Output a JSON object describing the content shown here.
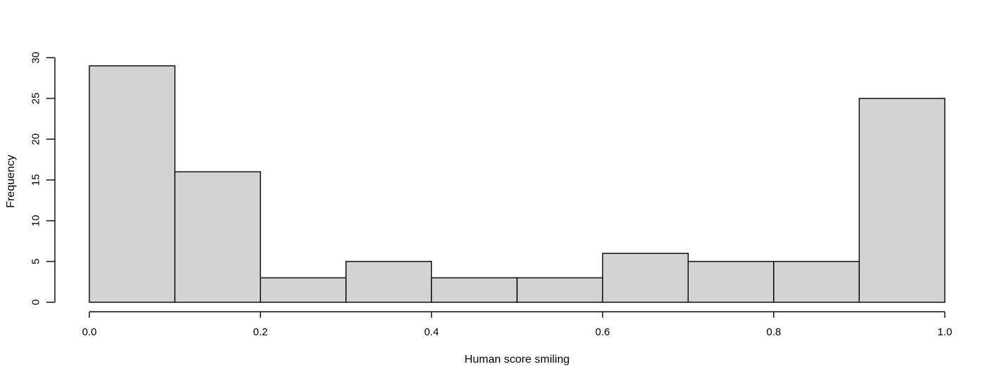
{
  "figure": {
    "background": "#ffffff",
    "text_color": "#000000"
  },
  "chart_data": {
    "type": "bar",
    "subtype": "histogram",
    "title": "",
    "xlabel": "Human score smiling",
    "ylabel": "Frequency",
    "bin_edges": [
      0.0,
      0.1,
      0.2,
      0.3,
      0.4,
      0.5,
      0.6,
      0.7,
      0.8,
      0.9,
      1.0
    ],
    "counts": [
      29,
      16,
      3,
      5,
      3,
      3,
      6,
      5,
      5,
      25
    ],
    "total_count": 100,
    "xlim": [
      0.0,
      1.0
    ],
    "ylim": [
      0,
      30
    ],
    "x_ticks": [
      {
        "value": 0.0,
        "label": "0.0"
      },
      {
        "value": 0.2,
        "label": "0.2"
      },
      {
        "value": 0.4,
        "label": "0.4"
      },
      {
        "value": 0.6,
        "label": "0.6"
      },
      {
        "value": 0.8,
        "label": "0.8"
      },
      {
        "value": 1.0,
        "label": "1.0"
      }
    ],
    "y_ticks": [
      {
        "value": 0,
        "label": "0"
      },
      {
        "value": 5,
        "label": "5"
      },
      {
        "value": 10,
        "label": "10"
      },
      {
        "value": 15,
        "label": "15"
      },
      {
        "value": 20,
        "label": "20"
      },
      {
        "value": 25,
        "label": "25"
      },
      {
        "value": 30,
        "label": "30"
      }
    ],
    "grid": false,
    "legend": null,
    "bar_fill": "#d3d3d3",
    "bar_stroke": "#000000",
    "axis_color": "#000000"
  }
}
